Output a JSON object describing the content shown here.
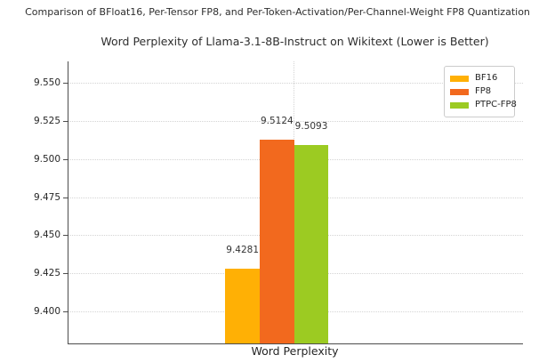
{
  "chart_data": {
    "type": "bar",
    "suptitle": "Comparison of BFloat16, Per-Tensor FP8, and Per-Token-Activation/Per-Channel-Weight FP8 Quantization",
    "title": "Word Perplexity of Llama-3.1-8B-Instruct on Wikitext (Lower is Better)",
    "categories": [
      "Word Perplexity"
    ],
    "series": [
      {
        "name": "BF16",
        "values": [
          9.4281
        ],
        "color": "#FFB005"
      },
      {
        "name": "FP8",
        "values": [
          9.5124
        ],
        "color": "#F2691E"
      },
      {
        "name": "PTPC-FP8",
        "values": [
          9.5093
        ],
        "color": "#9CCB22"
      }
    ],
    "value_labels": [
      "9.4281",
      "9.5124",
      "9.5093"
    ],
    "yticks": [
      9.4,
      9.425,
      9.45,
      9.475,
      9.5,
      9.525,
      9.55
    ],
    "ytick_labels": [
      "9.400",
      "9.425",
      "9.450",
      "9.475",
      "9.500",
      "9.525",
      "9.550"
    ],
    "ylim": [
      9.379,
      9.564
    ],
    "xlabel": "",
    "ylabel": "",
    "grid": true,
    "grid_style": "dotted",
    "grid_color": "#d4d4d4",
    "spine_color": "#4d4d4d",
    "legend_position": "upper right",
    "legend_entries": [
      "BF16",
      "FP8",
      "PTPC-FP8"
    ]
  }
}
